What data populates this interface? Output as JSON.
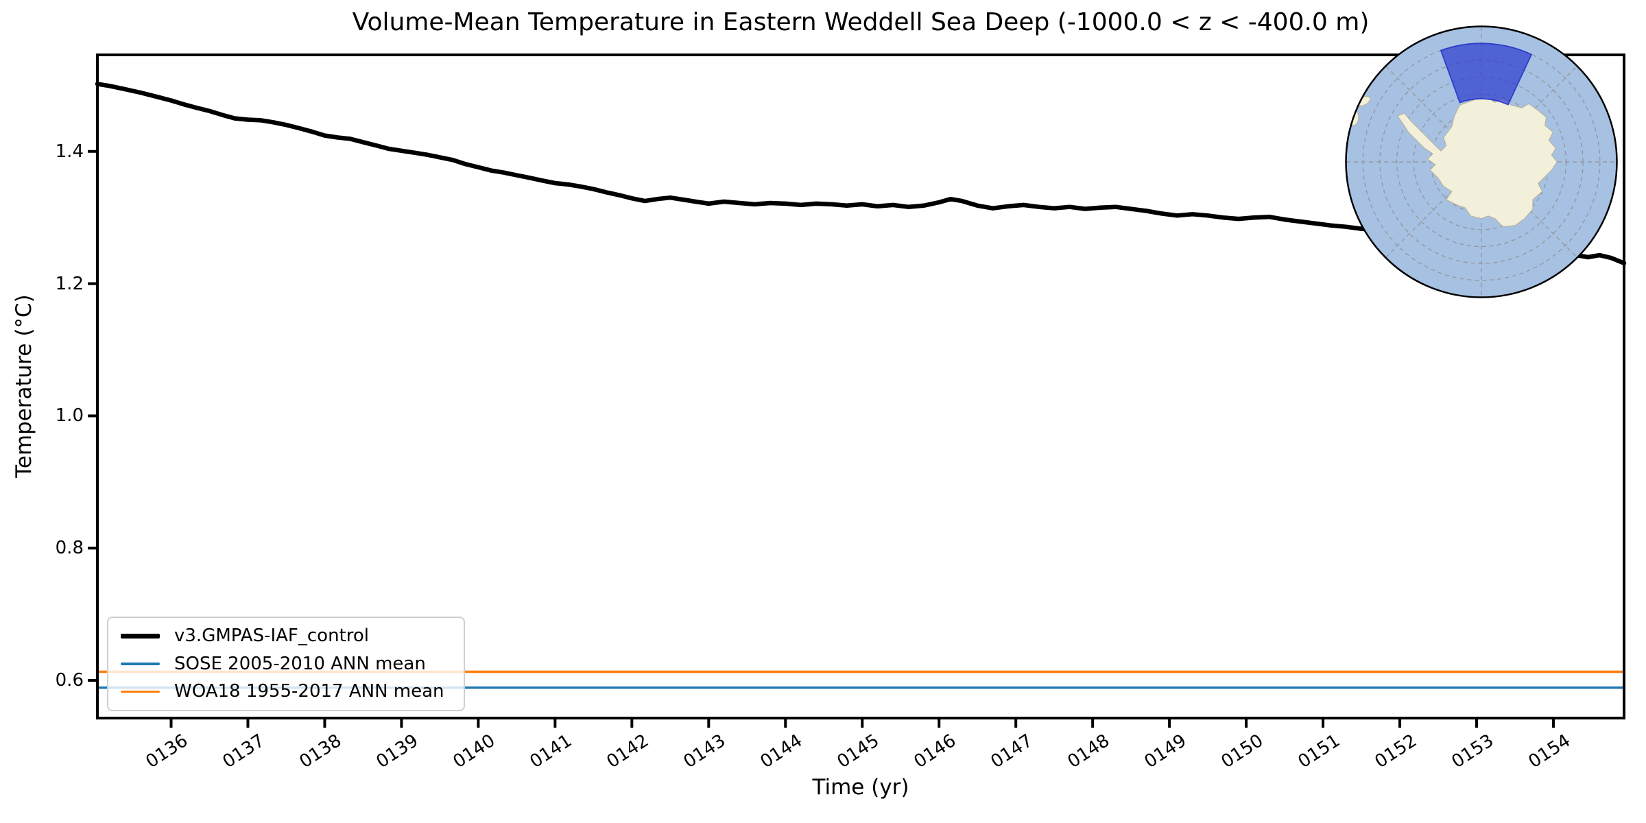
{
  "figure": {
    "title": "Volume-Mean Temperature in Eastern Weddell Sea Deep (-1000.0 < z < -400.0 m)",
    "background_color": "#ffffff"
  },
  "axes": {
    "xlabel": "Time (yr)",
    "ylabel": "Temperature (°C)"
  },
  "legend": {
    "position": "lower left",
    "items": [
      {
        "label": "v3.GMPAS-IAF_control",
        "color": "#000000",
        "line_width": 7
      },
      {
        "label": "SOSE 2005-2010 ANN mean",
        "color": "#1f77b4",
        "line_width": 3.5
      },
      {
        "label": "WOA18 1955-2017 ANN mean",
        "color": "#ff7f0e",
        "line_width": 3.5
      }
    ]
  },
  "inset_map": {
    "description": "South polar stereographic map of Antarctica with Eastern Weddell Sea region highlighted",
    "colors": {
      "ocean": "#a7c1e2",
      "land": "#f2efda",
      "coastline": "#b5af96",
      "graticule": "#8e8e8e",
      "border": "#000000",
      "region_fill": "#2b3bd0",
      "region_border": "#2330c8"
    }
  },
  "chart_data": {
    "type": "line",
    "title": "Volume-Mean Temperature in Eastern Weddell Sea Deep (-1000.0 < z < -400.0 m)",
    "xlabel": "Time (yr)",
    "ylabel": "Temperature (°C)",
    "xlim": [
      135.04,
      154.92
    ],
    "ylim": [
      0.543,
      1.546
    ],
    "grid": false,
    "x_tick_values": [
      136,
      137,
      138,
      139,
      140,
      141,
      142,
      143,
      144,
      145,
      146,
      147,
      148,
      149,
      150,
      151,
      152,
      153,
      154
    ],
    "x_tick_labels": [
      "0136",
      "0137",
      "0138",
      "0139",
      "0140",
      "0141",
      "0142",
      "0143",
      "0144",
      "0145",
      "0146",
      "0147",
      "0148",
      "0149",
      "0150",
      "0151",
      "0152",
      "0153",
      "0154"
    ],
    "y_tick_values": [
      0.6,
      0.8,
      1.0,
      1.2,
      1.4
    ],
    "y_tick_labels": [
      "0.6",
      "0.8",
      "1.0",
      "1.2",
      "1.4"
    ],
    "series": [
      {
        "name": "v3.GMPAS-IAF_control",
        "type": "line",
        "color": "#000000",
        "width": 6.5,
        "x": [
          135.04,
          135.2,
          135.4,
          135.6,
          135.8,
          136.0,
          136.17,
          136.33,
          136.5,
          136.67,
          136.83,
          137.0,
          137.17,
          137.33,
          137.5,
          137.67,
          137.83,
          138.0,
          138.17,
          138.33,
          138.5,
          138.67,
          138.83,
          139.0,
          139.17,
          139.33,
          139.5,
          139.67,
          139.83,
          140.0,
          140.17,
          140.33,
          140.5,
          140.67,
          140.83,
          141.0,
          141.17,
          141.33,
          141.5,
          141.67,
          141.83,
          142.0,
          142.17,
          142.33,
          142.5,
          142.67,
          142.83,
          143.0,
          143.2,
          143.4,
          143.6,
          143.8,
          144.0,
          144.2,
          144.4,
          144.6,
          144.8,
          145.0,
          145.2,
          145.4,
          145.6,
          145.8,
          146.0,
          146.15,
          146.3,
          146.5,
          146.7,
          146.9,
          147.1,
          147.3,
          147.5,
          147.7,
          147.9,
          148.1,
          148.3,
          148.5,
          148.7,
          148.9,
          149.1,
          149.3,
          149.5,
          149.7,
          149.9,
          150.1,
          150.3,
          150.5,
          150.7,
          150.9,
          151.1,
          151.3,
          151.5,
          151.7,
          151.9,
          152.1,
          152.3,
          152.5,
          152.7,
          152.9,
          153.1,
          153.3,
          153.5,
          153.7,
          153.9,
          154.1,
          154.3,
          154.45,
          154.6,
          154.75,
          154.92
        ],
        "y": [
          1.502,
          1.499,
          1.494,
          1.489,
          1.483,
          1.477,
          1.471,
          1.466,
          1.461,
          1.455,
          1.45,
          1.448,
          1.447,
          1.444,
          1.44,
          1.435,
          1.43,
          1.424,
          1.421,
          1.419,
          1.414,
          1.409,
          1.404,
          1.401,
          1.398,
          1.395,
          1.391,
          1.387,
          1.381,
          1.376,
          1.371,
          1.368,
          1.364,
          1.36,
          1.356,
          1.352,
          1.35,
          1.347,
          1.343,
          1.338,
          1.334,
          1.329,
          1.325,
          1.328,
          1.33,
          1.327,
          1.324,
          1.321,
          1.324,
          1.322,
          1.32,
          1.322,
          1.321,
          1.319,
          1.321,
          1.32,
          1.318,
          1.32,
          1.317,
          1.319,
          1.316,
          1.318,
          1.323,
          1.328,
          1.325,
          1.318,
          1.314,
          1.317,
          1.319,
          1.316,
          1.314,
          1.316,
          1.313,
          1.315,
          1.316,
          1.313,
          1.31,
          1.306,
          1.303,
          1.305,
          1.303,
          1.3,
          1.298,
          1.3,
          1.301,
          1.297,
          1.294,
          1.291,
          1.288,
          1.286,
          1.283,
          1.281,
          1.278,
          1.275,
          1.272,
          1.269,
          1.266,
          1.263,
          1.26,
          1.257,
          1.254,
          1.251,
          1.249,
          1.246,
          1.243,
          1.24,
          1.243,
          1.239,
          1.231
        ]
      },
      {
        "name": "SOSE 2005-2010 ANN mean",
        "type": "hline",
        "color": "#1f77b4",
        "width": 3.5,
        "value": 0.589
      },
      {
        "name": "WOA18 1955-2017 ANN mean",
        "type": "hline",
        "color": "#ff7f0e",
        "width": 3.5,
        "value": 0.613
      }
    ]
  }
}
